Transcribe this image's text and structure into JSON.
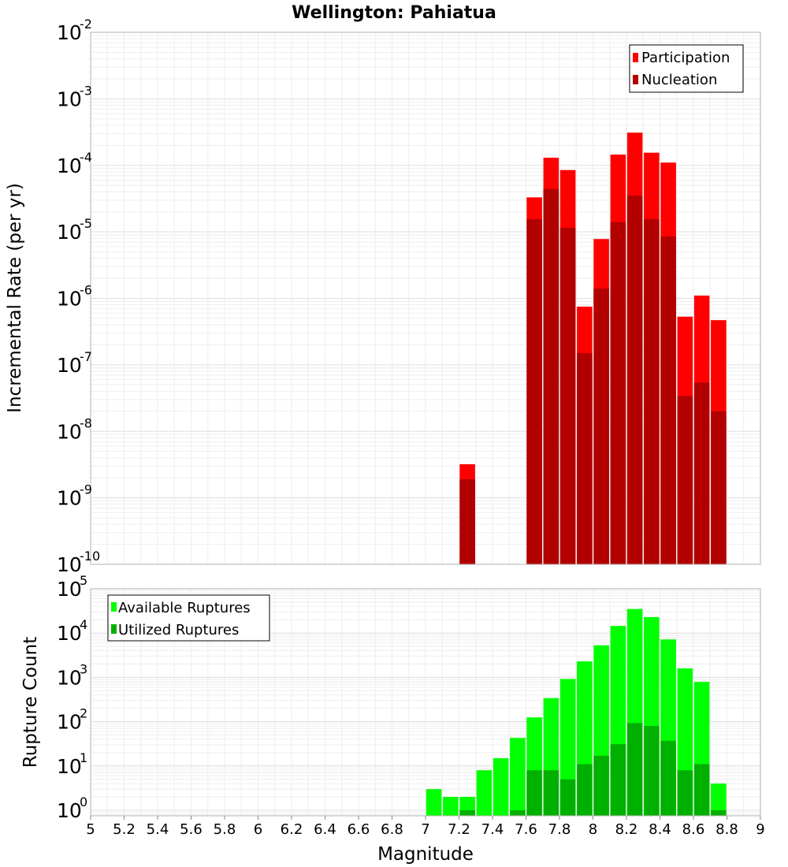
{
  "chart_data": [
    {
      "type": "bar",
      "title": "Wellington: Pahiatua",
      "xlabel": "",
      "ylabel": "Incremental Rate (per yr)",
      "yscale": "log",
      "ylim": [
        1e-10,
        0.01
      ],
      "xlim": [
        5,
        9
      ],
      "y_ticks": [
        {
          "base": "10",
          "exp": "-2"
        },
        {
          "base": "10",
          "exp": "-3"
        },
        {
          "base": "10",
          "exp": "-4"
        },
        {
          "base": "10",
          "exp": "-5"
        },
        {
          "base": "10",
          "exp": "-6"
        },
        {
          "base": "10",
          "exp": "-7"
        },
        {
          "base": "10",
          "exp": "-8"
        },
        {
          "base": "10",
          "exp": "-9"
        },
        {
          "base": "10",
          "exp": "-10"
        }
      ],
      "legend": {
        "position": "top-right",
        "entries": [
          "Participation",
          "Nucleation"
        ]
      },
      "grid": true,
      "colors": {
        "Participation": "#ff0000",
        "Nucleation": "#b20000"
      },
      "x": [
        7.25,
        7.65,
        7.75,
        7.85,
        7.95,
        8.05,
        8.15,
        8.25,
        8.35,
        8.45,
        8.55,
        8.65,
        8.75
      ],
      "series": [
        {
          "name": "Participation",
          "values": [
            3.2e-09,
            3.3e-05,
            0.00013,
            8.5e-05,
            7.5e-07,
            7.8e-06,
            0.000145,
            0.00031,
            0.000155,
            0.00011,
            5.3e-07,
            1.1e-06,
            4.7e-07
          ]
        },
        {
          "name": "Nucleation",
          "values": [
            1.9e-09,
            1.55e-05,
            4.4e-05,
            1.15e-05,
            1.5e-07,
            1.4e-06,
            1.4e-05,
            3.5e-05,
            1.55e-05,
            8.5e-06,
            3.4e-08,
            5.4e-08,
            2e-08
          ]
        }
      ]
    },
    {
      "type": "bar",
      "title": "",
      "xlabel": "Magnitude",
      "ylabel": "Rupture Count",
      "yscale": "log",
      "ylim": [
        0.75,
        100000
      ],
      "xlim": [
        5,
        9
      ],
      "y_ticks": [
        {
          "base": "10",
          "exp": "5"
        },
        {
          "base": "10",
          "exp": "4"
        },
        {
          "base": "10",
          "exp": "3"
        },
        {
          "base": "10",
          "exp": "2"
        },
        {
          "base": "10",
          "exp": "1"
        },
        {
          "base": "10",
          "exp": "0"
        }
      ],
      "x_tick_labels": [
        "5",
        "5.2",
        "5.4",
        "5.6",
        "5.8",
        "6",
        "6.2",
        "6.4",
        "6.6",
        "6.8",
        "7",
        "7.2",
        "7.4",
        "7.6",
        "7.8",
        "8",
        "8.2",
        "8.4",
        "8.6",
        "8.8",
        "9"
      ],
      "legend": {
        "position": "top-left",
        "entries": [
          "Available Ruptures",
          "Utilized Ruptures"
        ]
      },
      "grid": true,
      "colors": {
        "Available Ruptures": "#00ff00",
        "Utilized Ruptures": "#00b000"
      },
      "x": [
        7.05,
        7.15,
        7.25,
        7.35,
        7.45,
        7.55,
        7.65,
        7.75,
        7.85,
        7.95,
        8.05,
        8.15,
        8.25,
        8.35,
        8.45,
        8.55,
        8.65,
        8.75
      ],
      "series": [
        {
          "name": "Available Ruptures",
          "values": [
            3,
            2,
            2,
            8,
            15,
            43,
            125,
            340,
            920,
            2300,
            5300,
            14500,
            35000,
            23000,
            7200,
            1600,
            790,
            4
          ]
        },
        {
          "name": "Utilized Ruptures",
          "values": [
            null,
            null,
            1,
            null,
            null,
            1,
            8,
            8,
            5,
            11,
            17,
            31,
            93,
            80,
            37,
            8,
            11,
            1
          ]
        }
      ]
    }
  ]
}
